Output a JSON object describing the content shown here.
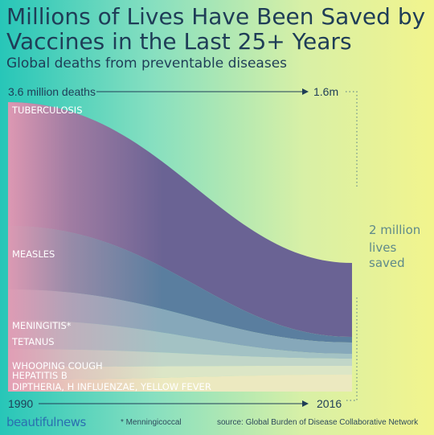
{
  "header": {
    "title": "Millions of Lives Have Been Saved by Vaccines in the Last 25+ Years",
    "subtitle": "Global deaths from preventable diseases"
  },
  "chart_data": {
    "type": "area",
    "x": [
      "1990",
      "2016"
    ],
    "start_total_label": "3.6 million deaths",
    "end_total_label": "1.6m",
    "series": [
      {
        "name": "TUBERCULOSIS",
        "values": [
          1.54,
          0.92
        ],
        "color": "#6a6394"
      },
      {
        "name": "MEASLES",
        "values": [
          0.79,
          0.07
        ],
        "color": "#5a7e9f"
      },
      {
        "name": "MENINGITIS*",
        "values": [
          0.38,
          0.14
        ],
        "color": "#86a8ba"
      },
      {
        "name": "TETANUS",
        "values": [
          0.36,
          0.06
        ],
        "color": "#a3c2c4"
      },
      {
        "name": "WHOOPING COUGH",
        "values": [
          0.22,
          0.09
        ],
        "color": "#c1d6c8"
      },
      {
        "name": "HEPATITIS B",
        "values": [
          0.16,
          0.11
        ],
        "color": "#dce6c6"
      },
      {
        "name": "DIPTHERIA, H INFLUENZAE, YELLOW FEVER",
        "values": [
          0.15,
          0.21
        ],
        "color": "#ece9c0"
      }
    ],
    "start_color": "#e39bb4",
    "annotation": [
      "2 million",
      "lives",
      "saved"
    ]
  },
  "footer": {
    "brand": "beautifulnews",
    "footnote": "* Menningicoccal",
    "source": "source: Global Burden of Disease Collaborative Network"
  }
}
